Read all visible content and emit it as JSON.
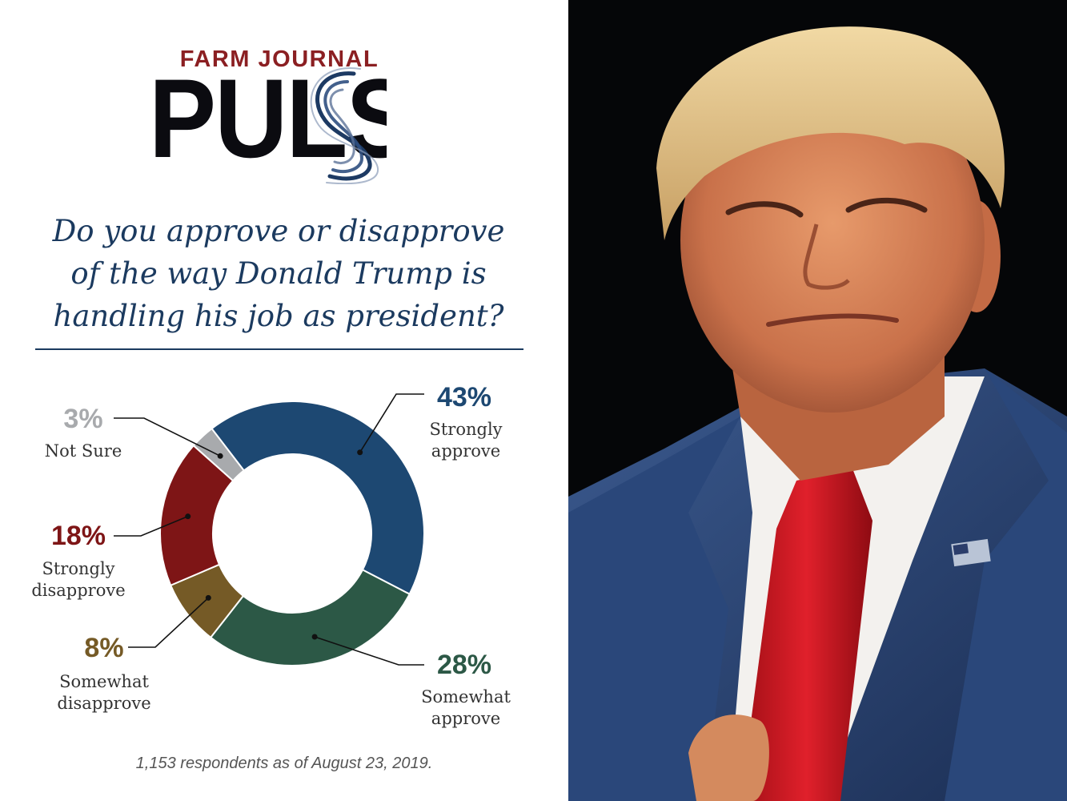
{
  "brand": {
    "top": "FARM JOURNAL",
    "main": "PULSE"
  },
  "question": [
    "Do you approve or disapprove",
    "of the way Donald Trump is",
    "handling his job as president?"
  ],
  "footnote": "1,153 respondents as of August 23, 2019.",
  "chart_data": {
    "type": "pie",
    "title": "",
    "slices": [
      {
        "label": "Strongly approve",
        "pct_text": "43%",
        "value": 43,
        "color": "#1d4872"
      },
      {
        "label": "Somewhat approve",
        "pct_text": "28%",
        "value": 28,
        "color": "#2c5846"
      },
      {
        "label": "Somewhat disapprove",
        "pct_text": "8%",
        "value": 8,
        "color": "#755a26"
      },
      {
        "label": "Strongly disapprove",
        "pct_text": "18%",
        "value": 18,
        "color": "#7e1516"
      },
      {
        "label": "Not Sure",
        "pct_text": "3%",
        "value": 3,
        "color": "#a8aaad"
      }
    ],
    "legend": "none",
    "grid": false
  },
  "colors": {
    "title": "#1b3a5f",
    "brand_red": "#8b1f22",
    "photo_bg": "#050608"
  },
  "photo": {
    "icon": "person-portrait-photo"
  }
}
